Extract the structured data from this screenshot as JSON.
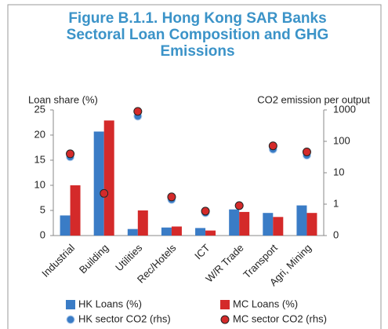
{
  "chart_data": {
    "type": "bar",
    "title_lines": [
      "Figure B.1.1. Hong Kong SAR Banks",
      "Sectoral  Loan Composition and GHG",
      "Emissions"
    ],
    "ylabel": "Loan share (%)",
    "y2label": "CO2 emission per output",
    "categories": [
      "Industrial",
      "Building",
      "Utilities",
      "Rec/Hotels",
      "ICT",
      "W/R Trade",
      "Transport",
      "Agri, Mining"
    ],
    "series": [
      {
        "name": "HK Loans (%)",
        "type": "bar",
        "color": "#3a7cc6",
        "values": [
          4.0,
          20.7,
          1.3,
          1.6,
          1.5,
          5.2,
          4.5,
          6.0
        ]
      },
      {
        "name": "MC Loans (%)",
        "type": "bar",
        "color": "#d42a2a",
        "values": [
          10.0,
          22.9,
          5.0,
          1.8,
          1.0,
          4.7,
          3.7,
          4.5
        ]
      },
      {
        "name": "HK sector CO2 (rhs)",
        "type": "scatter",
        "axis": "y2",
        "color": "#3a7cc6",
        "values": [
          32,
          2.2,
          630,
          1.4,
          0.53,
          0.9,
          56,
          36
        ]
      },
      {
        "name": "MC sector CO2 (rhs)",
        "type": "scatter",
        "axis": "y2",
        "color": "#d42a2a",
        "values": [
          40,
          2.2,
          900,
          1.7,
          0.6,
          0.9,
          72,
          46
        ]
      }
    ],
    "ylim": [
      0,
      25
    ],
    "yticks": [
      0,
      5,
      10,
      15,
      20,
      25
    ],
    "y2lim": [
      0.1,
      1000
    ],
    "y2log": true,
    "y2ticks": [
      {
        "value": 0.1,
        "label": "0"
      },
      1,
      10,
      100,
      1000
    ]
  }
}
